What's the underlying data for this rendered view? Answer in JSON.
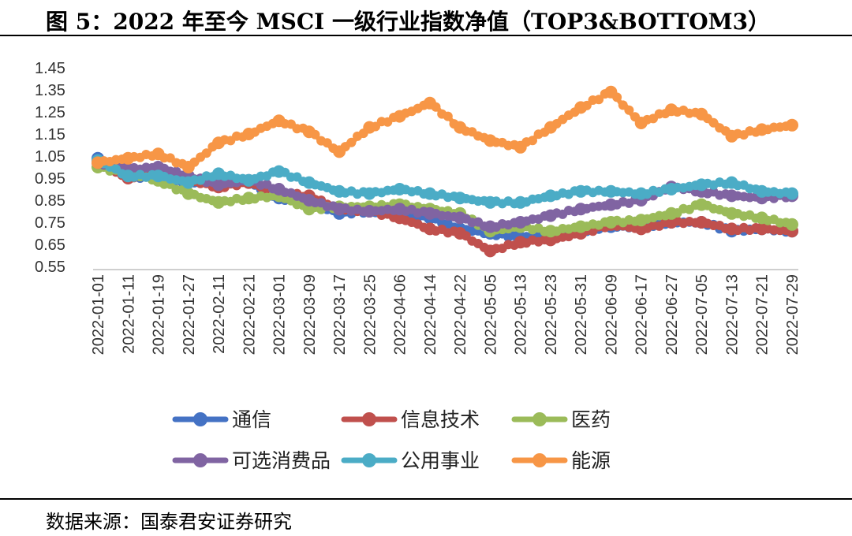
{
  "figure": {
    "title": "图 5：2022 年至今 MSCI 一级行业指数净值（TOP3&BOTTOM3）",
    "source": "数据来源：国泰君安证券研究"
  },
  "chart_data": {
    "type": "line",
    "title": "2022 年至今 MSCI 一级行业指数净值（TOP3&BOTTOM3）",
    "xlabel": "",
    "ylabel": "",
    "ylim": [
      0.55,
      1.45
    ],
    "yticks": [
      "1.45",
      "1.35",
      "1.25",
      "1.15",
      "1.05",
      "0.95",
      "0.85",
      "0.75",
      "0.65",
      "0.55"
    ],
    "grid": false,
    "legend_position": "bottom",
    "categories": [
      "2022-01-01",
      "2022-01-11",
      "2022-01-19",
      "2022-01-27",
      "2022-02-11",
      "2022-02-21",
      "2022-03-01",
      "2022-03-09",
      "2022-03-17",
      "2022-03-25",
      "2022-04-06",
      "2022-04-14",
      "2022-04-22",
      "2022-05-05",
      "2022-05-13",
      "2022-05-23",
      "2022-05-31",
      "2022-06-09",
      "2022-06-17",
      "2022-06-27",
      "2022-07-05",
      "2022-07-13",
      "2022-07-21",
      "2022-07-29"
    ],
    "series": [
      {
        "name": "通信",
        "color": "#4472C4",
        "values": [
          1.04,
          0.96,
          0.95,
          0.93,
          0.95,
          0.93,
          0.86,
          0.84,
          0.79,
          0.8,
          0.79,
          0.77,
          0.72,
          0.7,
          0.68,
          0.69,
          0.71,
          0.73,
          0.73,
          0.75,
          0.75,
          0.71,
          0.72,
          0.71
        ]
      },
      {
        "name": "信息技术",
        "color": "#C0504D",
        "values": [
          1.02,
          0.95,
          0.98,
          0.94,
          0.91,
          0.93,
          0.88,
          0.87,
          0.81,
          0.8,
          0.77,
          0.72,
          0.7,
          0.62,
          0.66,
          0.67,
          0.7,
          0.74,
          0.72,
          0.75,
          0.75,
          0.72,
          0.72,
          0.71
        ]
      },
      {
        "name": "医药",
        "color": "#9BBB59",
        "values": [
          1.0,
          0.97,
          0.94,
          0.88,
          0.84,
          0.86,
          0.87,
          0.81,
          0.82,
          0.82,
          0.83,
          0.81,
          0.79,
          0.71,
          0.73,
          0.71,
          0.73,
          0.75,
          0.76,
          0.79,
          0.83,
          0.79,
          0.77,
          0.74
        ]
      },
      {
        "name": "可选消费品",
        "color": "#8064A2",
        "values": [
          1.02,
          0.99,
          1.0,
          0.96,
          0.92,
          0.94,
          0.9,
          0.85,
          0.81,
          0.8,
          0.81,
          0.79,
          0.77,
          0.73,
          0.75,
          0.78,
          0.81,
          0.83,
          0.85,
          0.91,
          0.89,
          0.87,
          0.86,
          0.87
        ]
      },
      {
        "name": "公用事业",
        "color": "#4BACC6",
        "values": [
          1.03,
          0.96,
          0.96,
          0.93,
          0.97,
          0.94,
          0.98,
          0.93,
          0.89,
          0.88,
          0.9,
          0.88,
          0.86,
          0.84,
          0.84,
          0.87,
          0.89,
          0.89,
          0.88,
          0.9,
          0.92,
          0.93,
          0.89,
          0.88
        ]
      },
      {
        "name": "能源",
        "color": "#F79646",
        "values": [
          1.02,
          1.04,
          1.06,
          1.0,
          1.11,
          1.15,
          1.21,
          1.16,
          1.07,
          1.18,
          1.23,
          1.29,
          1.18,
          1.12,
          1.09,
          1.18,
          1.27,
          1.34,
          1.2,
          1.26,
          1.24,
          1.14,
          1.17,
          1.19
        ]
      }
    ]
  }
}
